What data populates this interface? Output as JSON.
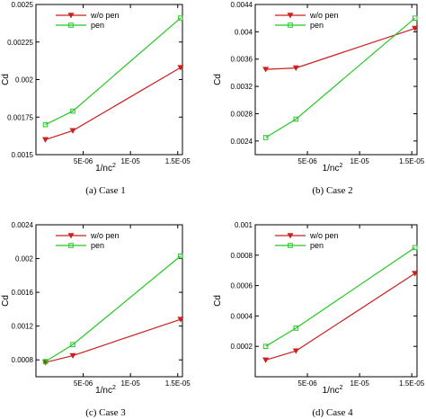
{
  "colors": {
    "wo_pen": "#cc1f1f",
    "pen": "#22c922"
  },
  "chart_data": [
    {
      "type": "line",
      "caption": "(a) Case 1",
      "xlabel": "1/nc",
      "xlabel_sup": "2",
      "ylabel": "Cd",
      "xlim": [
        0,
        1.55e-05
      ],
      "ylim": [
        0.0015,
        0.0025
      ],
      "xticks": [
        5e-06,
        1e-05,
        1.5e-05
      ],
      "xtick_labels": [
        "5E-06",
        "1E-05",
        "1.5E-05"
      ],
      "yticks": [
        0.0015,
        0.00175,
        0.002,
        0.00225,
        0.0025
      ],
      "ytick_labels": [
        "0.0015",
        "0.00175",
        "0.002",
        "0.00225",
        "0.0025"
      ],
      "legend": "top-left",
      "grid": false,
      "series": [
        {
          "name": "w/o pen",
          "marker": "triangle-down",
          "x": [
            1e-06,
            3.9e-06,
            1.53e-05
          ],
          "y": [
            0.0016,
            0.00166,
            0.00208
          ]
        },
        {
          "name": "pen",
          "marker": "square",
          "x": [
            1e-06,
            3.9e-06,
            1.53e-05
          ],
          "y": [
            0.0017,
            0.00179,
            0.00241
          ]
        }
      ]
    },
    {
      "type": "line",
      "caption": "(b) Case 2",
      "xlabel": "1/nc",
      "xlabel_sup": "2",
      "ylabel": "Cd",
      "xlim": [
        0,
        1.55e-05
      ],
      "ylim": [
        0.0022,
        0.0044
      ],
      "xticks": [
        5e-06,
        1e-05,
        1.5e-05
      ],
      "xtick_labels": [
        "5E-06",
        "1E-05",
        "1.5E-05"
      ],
      "yticks": [
        0.0024,
        0.0028,
        0.0032,
        0.0036,
        0.004,
        0.0044
      ],
      "ytick_labels": [
        "0.0024",
        "0.0028",
        "0.0032",
        "0.0036",
        "0.004",
        "0.0044"
      ],
      "legend": "top-left",
      "grid": false,
      "series": [
        {
          "name": "w/o pen",
          "marker": "triangle-down",
          "x": [
            1e-06,
            3.9e-06,
            1.53e-05
          ],
          "y": [
            0.00345,
            0.00347,
            0.00405
          ]
        },
        {
          "name": "pen",
          "marker": "square",
          "x": [
            1e-06,
            3.9e-06,
            1.53e-05
          ],
          "y": [
            0.00245,
            0.00272,
            0.0042
          ]
        }
      ]
    },
    {
      "type": "line",
      "caption": "(c) Case 3",
      "xlabel": "1/nc",
      "xlabel_sup": "2",
      "ylabel": "Cd",
      "xlim": [
        0,
        1.55e-05
      ],
      "ylim": [
        0.0006,
        0.0024
      ],
      "xticks": [
        5e-06,
        1e-05,
        1.5e-05
      ],
      "xtick_labels": [
        "5E-06",
        "1E-05",
        "1.5E-05"
      ],
      "yticks": [
        0.0008,
        0.0012,
        0.0016,
        0.002,
        0.0024
      ],
      "ytick_labels": [
        "0.0008",
        "0.0012",
        "0.0016",
        "0.002",
        "0.0024"
      ],
      "legend": "top-left",
      "grid": false,
      "series": [
        {
          "name": "w/o pen",
          "marker": "triangle-down",
          "x": [
            1e-06,
            3.9e-06,
            1.53e-05
          ],
          "y": [
            0.00077,
            0.00085,
            0.00128
          ]
        },
        {
          "name": "pen",
          "marker": "square",
          "x": [
            1e-06,
            3.9e-06,
            1.53e-05
          ],
          "y": [
            0.00078,
            0.00098,
            0.00203
          ]
        }
      ]
    },
    {
      "type": "line",
      "caption": "(d) Case 4",
      "xlabel": "1/nc",
      "xlabel_sup": "2",
      "ylabel": "Cd",
      "xlim": [
        0,
        1.55e-05
      ],
      "ylim": [
        0,
        0.001
      ],
      "xticks": [
        5e-06,
        1e-05,
        1.5e-05
      ],
      "xtick_labels": [
        "5E-06",
        "1E-05",
        "1.5E-05"
      ],
      "yticks": [
        0.0002,
        0.0004,
        0.0006,
        0.0008,
        0.001
      ],
      "ytick_labels": [
        "0.0002",
        "0.0004",
        "0.0006",
        "0.0008",
        "0.001"
      ],
      "legend": "top-left",
      "grid": false,
      "series": [
        {
          "name": "w/o pen",
          "marker": "triangle-down",
          "x": [
            1e-06,
            3.9e-06,
            1.53e-05
          ],
          "y": [
            0.00011,
            0.00017,
            0.00068
          ]
        },
        {
          "name": "pen",
          "marker": "square",
          "x": [
            1e-06,
            3.9e-06,
            1.53e-05
          ],
          "y": [
            0.0002,
            0.00032,
            0.00085
          ]
        }
      ]
    }
  ]
}
